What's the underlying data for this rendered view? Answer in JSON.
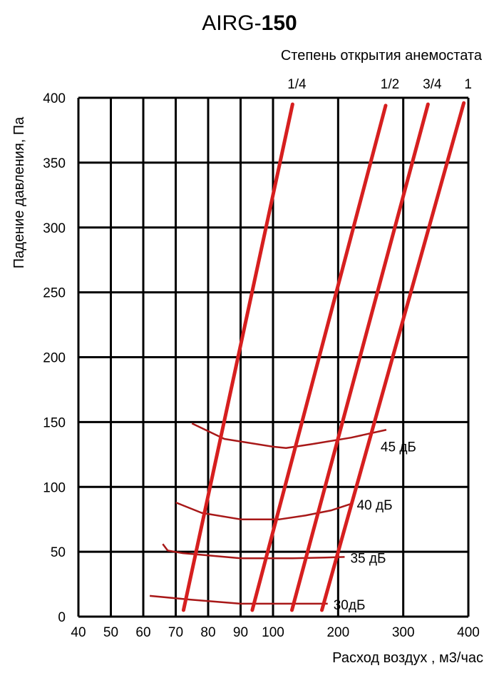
{
  "chart_data": {
    "type": "line",
    "title": "AIRG-150",
    "title_prefix": "AIRG-",
    "title_bold": "150",
    "top_label": "Степень открытия анемостата",
    "xlabel": "Расход воздух , м3/час",
    "ylabel": "Падение давления, Па",
    "x_ticks": [
      40,
      50,
      60,
      70,
      80,
      90,
      100,
      200,
      300,
      400
    ],
    "y_ticks": [
      0,
      50,
      100,
      150,
      200,
      250,
      300,
      350,
      400
    ],
    "xlim": [
      40,
      400
    ],
    "ylim": [
      0,
      400
    ],
    "grid": true,
    "line_color": "#d61f1f",
    "noise_color": "#a81818",
    "series": [
      {
        "name": "1/4",
        "points": [
          [
            72.4,
            5
          ],
          [
            130,
            395
          ]
        ]
      },
      {
        "name": "1/2",
        "points": [
          [
            93.6,
            5
          ],
          [
            273,
            394
          ]
        ]
      },
      {
        "name": "3/4",
        "points": [
          [
            129,
            5
          ],
          [
            338,
            395
          ]
        ]
      },
      {
        "name": "1",
        "points": [
          [
            175,
            5
          ],
          [
            393,
            396
          ]
        ]
      }
    ],
    "noise_curves": [
      {
        "name": "45 дБ",
        "points": [
          [
            75,
            149
          ],
          [
            85,
            137
          ],
          [
            100,
            131
          ],
          [
            120,
            130
          ],
          [
            160,
            133
          ],
          [
            220,
            138
          ],
          [
            274,
            144
          ]
        ]
      },
      {
        "name": "40 дБ",
        "points": [
          [
            70,
            88
          ],
          [
            78,
            80
          ],
          [
            90,
            75
          ],
          [
            110,
            75
          ],
          [
            150,
            78
          ],
          [
            190,
            82
          ],
          [
            220,
            87
          ]
        ]
      },
      {
        "name": "35 дБ",
        "points": [
          [
            66,
            56
          ],
          [
            67.5,
            51
          ],
          [
            72,
            49
          ],
          [
            90,
            45
          ],
          [
            130,
            45
          ],
          [
            180,
            45.5
          ],
          [
            210,
            46
          ]
        ]
      },
      {
        "name": "30дБ",
        "points": [
          [
            62,
            16
          ],
          [
            75,
            13
          ],
          [
            90,
            10
          ],
          [
            120,
            10
          ],
          [
            184,
            10
          ]
        ]
      }
    ]
  }
}
